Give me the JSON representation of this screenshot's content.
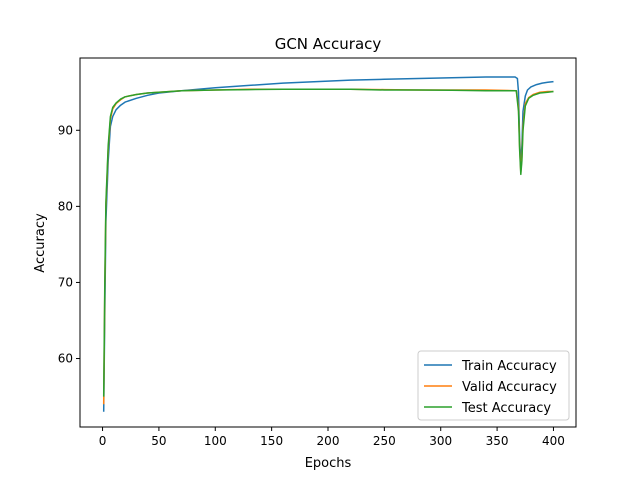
{
  "chart_data": {
    "type": "line",
    "title": "GCN Accuracy",
    "xlabel": "Epochs",
    "ylabel": "Accuracy",
    "xlim": [
      -20,
      420
    ],
    "ylim": [
      51,
      99.5
    ],
    "xticks": [
      0,
      50,
      100,
      150,
      200,
      250,
      300,
      350,
      400
    ],
    "yticks": [
      60,
      70,
      80,
      90
    ],
    "grid": false,
    "legend_position": "lower-right",
    "series": [
      {
        "name": "Train Accuracy",
        "color": "#1f77b4",
        "points": [
          [
            1,
            53
          ],
          [
            2,
            66
          ],
          [
            3,
            78
          ],
          [
            5,
            86
          ],
          [
            7,
            90.5
          ],
          [
            9,
            91.8
          ],
          [
            12,
            92.7
          ],
          [
            16,
            93.3
          ],
          [
            20,
            93.7
          ],
          [
            30,
            94.2
          ],
          [
            40,
            94.6
          ],
          [
            50,
            94.9
          ],
          [
            70,
            95.2
          ],
          [
            100,
            95.6
          ],
          [
            130,
            95.9
          ],
          [
            160,
            96.2
          ],
          [
            190,
            96.4
          ],
          [
            220,
            96.6
          ],
          [
            250,
            96.7
          ],
          [
            280,
            96.8
          ],
          [
            310,
            96.9
          ],
          [
            340,
            97.0
          ],
          [
            366,
            97.0
          ],
          [
            368,
            96.8
          ],
          [
            369,
            95.0
          ],
          [
            370,
            89.0
          ],
          [
            371,
            85.5
          ],
          [
            372,
            88.0
          ],
          [
            373,
            92.5
          ],
          [
            375,
            94.5
          ],
          [
            377,
            95.3
          ],
          [
            380,
            95.7
          ],
          [
            385,
            96.0
          ],
          [
            390,
            96.2
          ],
          [
            395,
            96.3
          ],
          [
            400,
            96.4
          ]
        ]
      },
      {
        "name": "Valid Accuracy",
        "color": "#ff7f0e",
        "points": [
          [
            1,
            54
          ],
          [
            2,
            69
          ],
          [
            3,
            80
          ],
          [
            5,
            87.5
          ],
          [
            7,
            91.5
          ],
          [
            9,
            92.8
          ],
          [
            12,
            93.5
          ],
          [
            16,
            94.0
          ],
          [
            20,
            94.4
          ],
          [
            30,
            94.7
          ],
          [
            40,
            94.9
          ],
          [
            50,
            95.0
          ],
          [
            70,
            95.2
          ],
          [
            100,
            95.3
          ],
          [
            130,
            95.4
          ],
          [
            160,
            95.4
          ],
          [
            190,
            95.4
          ],
          [
            220,
            95.4
          ],
          [
            250,
            95.35
          ],
          [
            280,
            95.3
          ],
          [
            310,
            95.3
          ],
          [
            340,
            95.3
          ],
          [
            367,
            95.2
          ],
          [
            369,
            93.0
          ],
          [
            370,
            88.0
          ],
          [
            371,
            84.5
          ],
          [
            372,
            86.5
          ],
          [
            373,
            90.5
          ],
          [
            375,
            93.5
          ],
          [
            378,
            94.3
          ],
          [
            382,
            94.7
          ],
          [
            388,
            95.0
          ],
          [
            395,
            95.1
          ],
          [
            400,
            95.1
          ]
        ]
      },
      {
        "name": "Test Accuracy",
        "color": "#2ca02c",
        "points": [
          [
            1,
            55
          ],
          [
            2,
            70
          ],
          [
            3,
            80.5
          ],
          [
            5,
            88
          ],
          [
            7,
            91.8
          ],
          [
            9,
            93.0
          ],
          [
            12,
            93.6
          ],
          [
            16,
            94.1
          ],
          [
            20,
            94.4
          ],
          [
            30,
            94.7
          ],
          [
            40,
            94.9
          ],
          [
            50,
            95.0
          ],
          [
            70,
            95.2
          ],
          [
            100,
            95.3
          ],
          [
            130,
            95.35
          ],
          [
            160,
            95.4
          ],
          [
            190,
            95.4
          ],
          [
            220,
            95.4
          ],
          [
            250,
            95.3
          ],
          [
            280,
            95.3
          ],
          [
            310,
            95.25
          ],
          [
            340,
            95.2
          ],
          [
            367,
            95.2
          ],
          [
            369,
            92.5
          ],
          [
            370,
            87.5
          ],
          [
            371,
            84.2
          ],
          [
            372,
            86.0
          ],
          [
            373,
            90.0
          ],
          [
            375,
            93.2
          ],
          [
            378,
            94.2
          ],
          [
            382,
            94.6
          ],
          [
            388,
            94.9
          ],
          [
            395,
            95.0
          ],
          [
            400,
            95.1
          ]
        ]
      }
    ]
  }
}
